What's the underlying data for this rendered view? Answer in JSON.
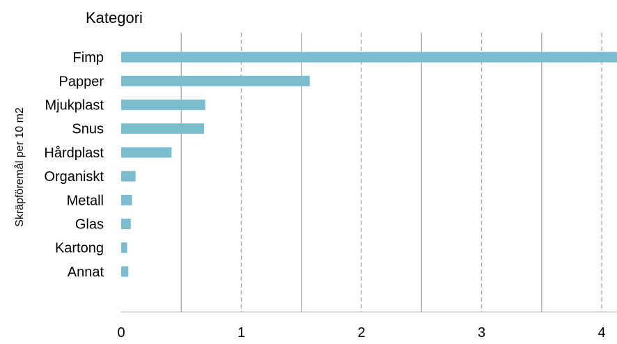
{
  "chart_data": {
    "type": "bar",
    "orientation": "horizontal",
    "title": "Kategori",
    "ylabel": "Skräpföremål per 10 m2",
    "xlabel": "",
    "categories": [
      "Fimp",
      "Papper",
      "Mjukplast",
      "Snus",
      "Hårdplast",
      "Organiskt",
      "Metall",
      "Glas",
      "Kartong",
      "Annat"
    ],
    "values": [
      4.2,
      1.57,
      0.7,
      0.69,
      0.42,
      0.12,
      0.09,
      0.08,
      0.05,
      0.06
    ],
    "xlim": [
      0,
      4.1
    ],
    "x_ticks": [
      "0",
      "1",
      "2",
      "3",
      "4"
    ],
    "grid": "vertical (solid at half units, dashed at whole units)",
    "bar_color": "#7bbccf",
    "grid_color": "#a6a6a6",
    "axis_color": "#bfbfbf",
    "legend": "none"
  }
}
